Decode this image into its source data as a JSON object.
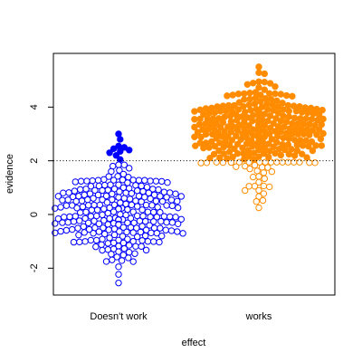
{
  "chart_data": {
    "type": "beeswarm",
    "xlabel": "effect",
    "ylabel": "evidence",
    "categories": [
      "Doesn't work",
      "works"
    ],
    "ylim": [
      -3,
      6
    ],
    "yticks": [
      -2,
      0,
      2,
      4
    ],
    "threshold": 2,
    "threshold_line": "dotted",
    "grid": false,
    "legend": "none",
    "colors": {
      "Doesn't work": "#0000ff",
      "works": "#ff8c00"
    },
    "fill_rule": "filled when evidence above threshold, hollow when below",
    "series": [
      {
        "category": "Doesn't work",
        "points_above_threshold": [
          2.05,
          2.2,
          2.3,
          2.35,
          2.4,
          2.45,
          2.5,
          2.55,
          2.8,
          3.0
        ],
        "distribution_below_threshold": {
          "count_estimate": 260,
          "min": -2.55,
          "max": 1.85,
          "center": 0.0
        }
      },
      {
        "category": "works",
        "distribution_above_threshold": {
          "count_estimate": 330,
          "min": 2.05,
          "max": 5.5,
          "center": 3.2
        },
        "points_below_threshold": {
          "count_estimate": 40,
          "min": 0.25,
          "max": 1.95
        }
      }
    ]
  }
}
